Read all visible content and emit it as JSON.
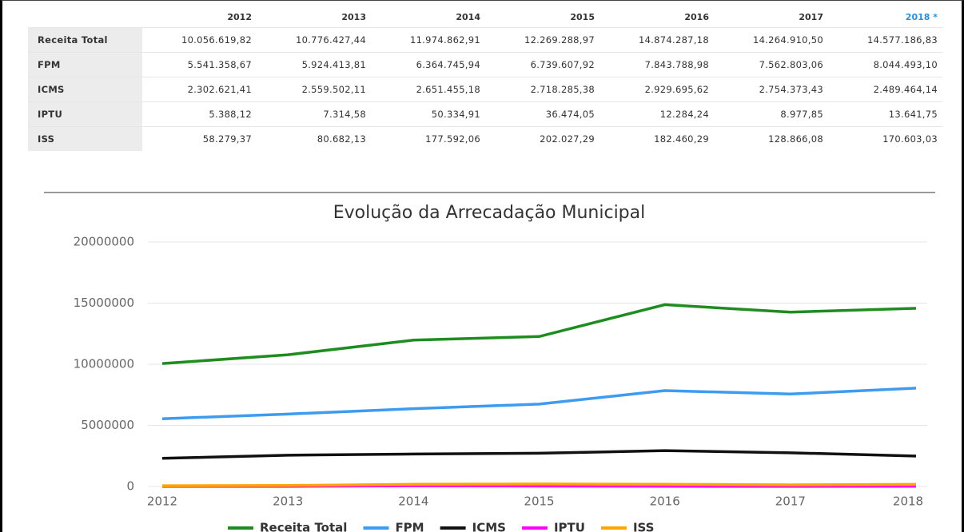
{
  "table": {
    "header": [
      "2012",
      "2013",
      "2014",
      "2015",
      "2016",
      "2017",
      "2018 *"
    ],
    "rows": [
      [
        "Receita Total",
        "10.056.619,82",
        "10.776.427,44",
        "11.974.862,91",
        "12.269.288,97",
        "14.874.287,18",
        "14.264.910,50",
        "14.577.186,83"
      ],
      [
        "FPM",
        "5.541.358,67",
        "5.924.413,81",
        "6.364.745,94",
        "6.739.607,92",
        "7.843.788,98",
        "7.562.803,06",
        "8.044.493,10"
      ],
      [
        "ICMS",
        "2.302.621,41",
        "2.559.502,11",
        "2.651.455,18",
        "2.718.285,38",
        "2.929.695,62",
        "2.754.373,43",
        "2.489.464,14"
      ],
      [
        "IPTU",
        "5.388,12",
        "7.314,58",
        "50.334,91",
        "36.474,05",
        "12.284,24",
        "8.977,85",
        "13.641,75"
      ],
      [
        "ISS",
        "58.279,37",
        "80.682,13",
        "177.592,06",
        "202.027,29",
        "182.460,29",
        "128.866,08",
        "170.603,03"
      ]
    ]
  },
  "chart_data": {
    "type": "line",
    "title": "Evolução da Arrecadação Municipal",
    "categories": [
      "2012",
      "2013",
      "2014",
      "2015",
      "2016",
      "2017",
      "2018"
    ],
    "series": [
      {
        "name": "Receita Total",
        "color": "#1e8c1e",
        "values": [
          10056619.82,
          10776427.44,
          11974862.91,
          12269288.97,
          14874287.18,
          14264910.5,
          14577186.83
        ]
      },
      {
        "name": "FPM",
        "color": "#3d9bf0",
        "values": [
          5541358.67,
          5924413.81,
          6364745.94,
          6739607.92,
          7843788.98,
          7562803.06,
          8044493.1
        ]
      },
      {
        "name": "ICMS",
        "color": "#111111",
        "values": [
          2302621.41,
          2559502.11,
          2651455.18,
          2718285.38,
          2929695.62,
          2754373.43,
          2489464.14
        ]
      },
      {
        "name": "IPTU",
        "color": "#ff00ff",
        "values": [
          5388.12,
          7314.58,
          50334.91,
          36474.05,
          12284.24,
          8977.85,
          13641.75
        ]
      },
      {
        "name": "ISS",
        "color": "#ffa500",
        "values": [
          58279.37,
          80682.13,
          177592.06,
          202027.29,
          182460.29,
          128866.08,
          170603.03
        ]
      }
    ],
    "ylim": [
      0,
      20000000
    ],
    "yticks": [
      0,
      5000000,
      10000000,
      15000000,
      20000000
    ],
    "grid": true
  }
}
